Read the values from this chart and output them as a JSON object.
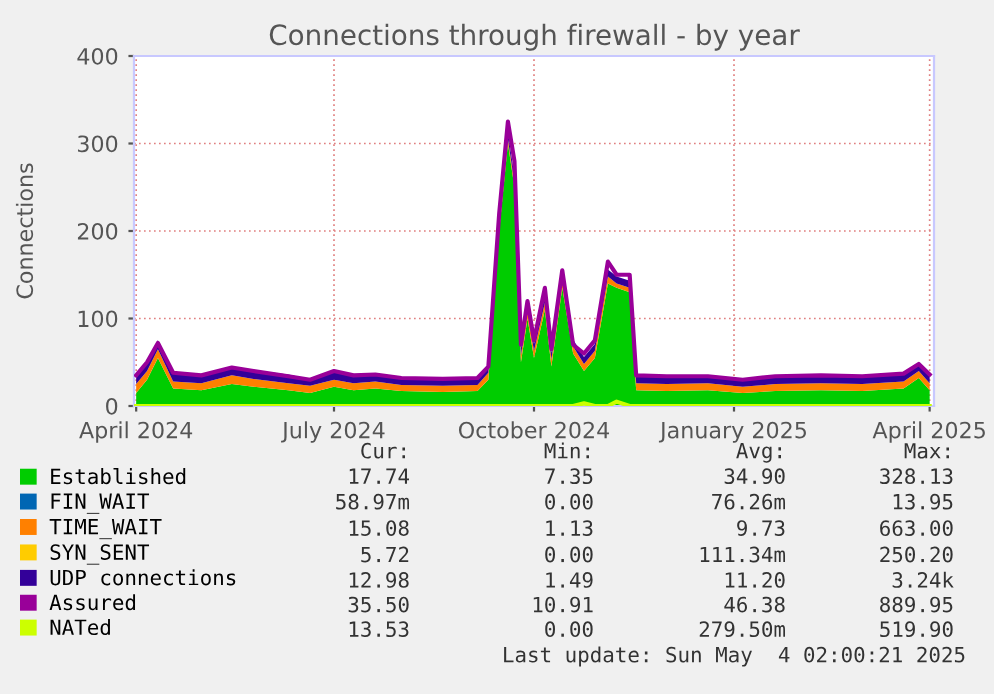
{
  "chart_data": {
    "type": "area",
    "stacked": true,
    "title": "Connections through firewall - by year",
    "ylabel": "Connections",
    "x": [
      "2024-04-01",
      "2024-04-06",
      "2024-04-11",
      "2024-04-18",
      "2024-05-01",
      "2024-05-15",
      "2024-05-25",
      "2024-06-10",
      "2024-06-20",
      "2024-07-01",
      "2024-07-10",
      "2024-07-20",
      "2024-08-01",
      "2024-08-20",
      "2024-09-05",
      "2024-09-10",
      "2024-09-15",
      "2024-09-19",
      "2024-09-22",
      "2024-09-25",
      "2024-09-28",
      "2024-10-01",
      "2024-10-06",
      "2024-10-09",
      "2024-10-14",
      "2024-10-19",
      "2024-10-24",
      "2024-10-29",
      "2024-11-04",
      "2024-11-08",
      "2024-11-14",
      "2024-11-17",
      "2024-12-01",
      "2024-12-20",
      "2025-01-05",
      "2025-01-20",
      "2025-02-10",
      "2025-03-01",
      "2025-03-20",
      "2025-03-27",
      "2025-04-01"
    ],
    "series": [
      {
        "name": "Established",
        "color": "#00cc00",
        "values": [
          15,
          30,
          55,
          20,
          18,
          25,
          22,
          18,
          15,
          22,
          18,
          20,
          17,
          16,
          17,
          30,
          200,
          300,
          250,
          50,
          100,
          55,
          110,
          45,
          135,
          60,
          40,
          55,
          140,
          135,
          130,
          18,
          17,
          18,
          15,
          17,
          18,
          17,
          20,
          32,
          18
        ]
      },
      {
        "name": "FIN_WAIT",
        "color": "#0066b3",
        "values": [
          null,
          null,
          null,
          null,
          null,
          null,
          null,
          null,
          null,
          null,
          null,
          null,
          null,
          null,
          null,
          null,
          null,
          null,
          null,
          null,
          null,
          null,
          null,
          null,
          null,
          null,
          null,
          null,
          null,
          null,
          null,
          null,
          null,
          null,
          null,
          null,
          null,
          null,
          null,
          null,
          null
        ]
      },
      {
        "name": "TIME_WAIT",
        "color": "#ff8000",
        "values": [
          10,
          10,
          10,
          8,
          8,
          10,
          9,
          8,
          8,
          8,
          8,
          8,
          7,
          7,
          7,
          8,
          10,
          5,
          5,
          8,
          8,
          8,
          8,
          8,
          8,
          8,
          8,
          8,
          8,
          5,
          5,
          8,
          8,
          8,
          7,
          8,
          8,
          8,
          8,
          8,
          8
        ]
      },
      {
        "name": "SYN_SENT",
        "color": "#ffcc00",
        "values": [
          null,
          null,
          null,
          null,
          null,
          null,
          null,
          null,
          null,
          null,
          null,
          null,
          null,
          null,
          null,
          null,
          null,
          null,
          null,
          null,
          null,
          null,
          null,
          null,
          null,
          null,
          null,
          null,
          null,
          null,
          null,
          null,
          null,
          null,
          null,
          null,
          null,
          null,
          null,
          null,
          null
        ]
      },
      {
        "name": "UDP connections",
        "color": "#330099",
        "values": [
          10,
          10,
          10,
          10,
          10,
          10,
          10,
          10,
          8,
          10,
          10,
          9,
          9,
          9,
          9,
          9,
          10,
          8,
          8,
          8,
          8,
          8,
          8,
          8,
          8,
          8,
          8,
          8,
          8,
          8,
          8,
          9,
          9,
          9,
          8,
          9,
          9,
          9,
          9,
          9,
          9
        ]
      },
      {
        "name": "Assured",
        "color": "#990099",
        "type": "line",
        "values": [
          35,
          50,
          72,
          38,
          35,
          44,
          40,
          34,
          30,
          40,
          35,
          36,
          32,
          31,
          32,
          45,
          220,
          325,
          280,
          70,
          120,
          75,
          135,
          65,
          155,
          70,
          60,
          75,
          165,
          150,
          150,
          35,
          34,
          34,
          30,
          34,
          35,
          34,
          37,
          48,
          36
        ]
      },
      {
        "name": "NATed",
        "color": "#ccff00",
        "type": "line",
        "values": [
          0,
          0,
          0,
          0,
          0,
          0,
          0,
          0,
          0,
          0,
          0,
          0,
          0,
          0,
          0,
          0,
          0,
          0,
          0,
          0,
          0,
          0,
          0,
          0,
          0,
          0,
          3,
          0,
          0,
          5,
          0,
          0,
          0,
          0,
          0,
          0,
          0,
          0,
          0,
          0,
          0
        ]
      }
    ],
    "xlim": [
      "2024-03-31",
      "2025-04-03"
    ],
    "xticks": [
      {
        "value": "2024-04-01",
        "label": "April 2024"
      },
      {
        "value": "2024-07-01",
        "label": "July 2024"
      },
      {
        "value": "2024-10-01",
        "label": "October 2024"
      },
      {
        "value": "2025-01-01",
        "label": "January 2025"
      },
      {
        "value": "2025-04-01",
        "label": "April 2025"
      }
    ],
    "ylim": [
      0,
      400
    ],
    "yticks": [
      0,
      100,
      200,
      300,
      400
    ],
    "grid": true,
    "legend": "bottom",
    "annotations": [
      "Cur:",
      "Min:",
      "Avg:",
      "Max:",
      "17.74",
      "7.35",
      "34.90",
      "328.13",
      "58.97m",
      "0.00",
      "76.26m",
      "13.95",
      "15.08",
      "1.13",
      "9.73",
      "663.00",
      "5.72",
      "0.00",
      "111.34m",
      "250.20",
      "12.98",
      "1.49",
      "11.20",
      "3.24k",
      "35.50",
      "10.91",
      "46.38",
      "889.95",
      "13.53",
      "0.00",
      "279.50m",
      "519.90",
      "Last update: Sun May  4 02:00:21 2025"
    ]
  }
}
